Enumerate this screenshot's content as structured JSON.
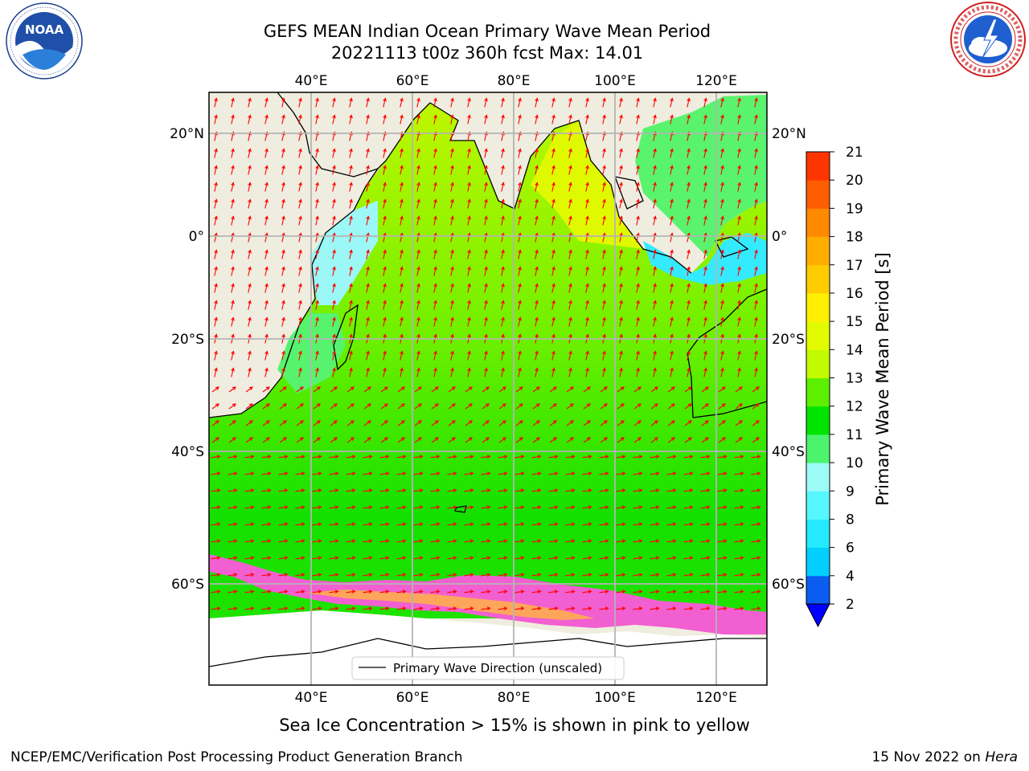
{
  "header": {
    "title_line1": "GEFS MEAN Indian Ocean Primary Wave Mean Period",
    "title_line2": "20221113 t00z 360h fcst   Max: 14.01"
  },
  "logos": {
    "noaa_text": "NOAA",
    "noaa_ring_text": "NATIONAL OCEANIC AND ATMOSPHERIC ADMINISTRATION · U.S. DEPARTMENT OF COMMERCE",
    "nws_ring_text": "NATIONAL WEATHER SERVICE"
  },
  "map": {
    "extent": {
      "lon_min": 20,
      "lon_max": 130,
      "lat_min": -70,
      "lat_max": 28
    },
    "lon_ticks": [
      "40°E",
      "60°E",
      "80°E",
      "100°E",
      "120°E"
    ],
    "lat_ticks": [
      "20°N",
      "0°",
      "20°S",
      "40°S",
      "60°S"
    ],
    "land_color": "#efeddf",
    "legend_label": "Primary Wave Direction (unscaled)",
    "arrow_color": "#ff0000"
  },
  "colorbar": {
    "label": "Primary Wave Mean Period [s]",
    "tick_labels": [
      "2",
      "4",
      "6",
      "8",
      "9",
      "10",
      "11",
      "12",
      "13",
      "14",
      "15",
      "16",
      "17",
      "18",
      "19",
      "20",
      "21"
    ],
    "colors": [
      "#0a5df0",
      "#00cfff",
      "#24eaff",
      "#57f7ff",
      "#9dfbf7",
      "#4cf36c",
      "#00e400",
      "#5cf000",
      "#c3fa00",
      "#e3fb00",
      "#ffef00",
      "#ffcc00",
      "#ffae00",
      "#ff8a00",
      "#ff5e00",
      "#ff3500",
      "#ff1000",
      "#ff0000"
    ],
    "extend_color": "#0000ff"
  },
  "caption": "Sea Ice Concentration > 15% is shown in pink to yellow",
  "footer": {
    "left": "NCEP/EMC/Verification Post Processing Product Generation Branch",
    "date": "15 Nov 2022 on ",
    "host": "Hera"
  }
}
